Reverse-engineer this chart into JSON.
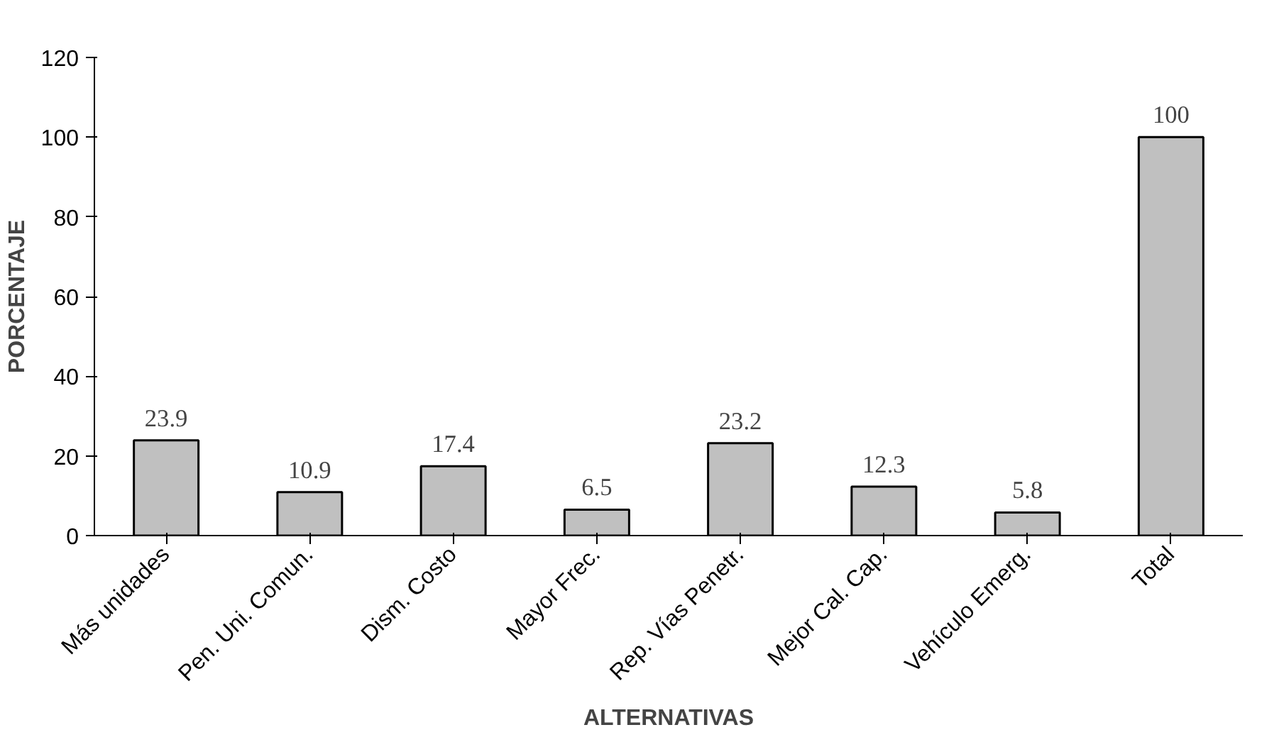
{
  "chart_data": {
    "type": "bar",
    "xlabel": "ALTERNATIVAS",
    "ylabel": "PORCENTAJE",
    "categories": [
      "Más unidades",
      "Pen. Uni. Comun.",
      "Dism. Costo",
      "Mayor Frec.",
      "Rep. Vías Penetr.",
      "Mejor Cal. Cap.",
      "Vehículo Emerg.",
      "Total"
    ],
    "values": [
      23.9,
      10.9,
      17.4,
      6.5,
      23.2,
      12.3,
      5.8,
      100
    ],
    "color": "#c0c0c0",
    "ylim": [
      0,
      120
    ],
    "yticks": [
      0,
      20,
      40,
      60,
      80,
      100,
      120
    ],
    "data_labels": true
  }
}
